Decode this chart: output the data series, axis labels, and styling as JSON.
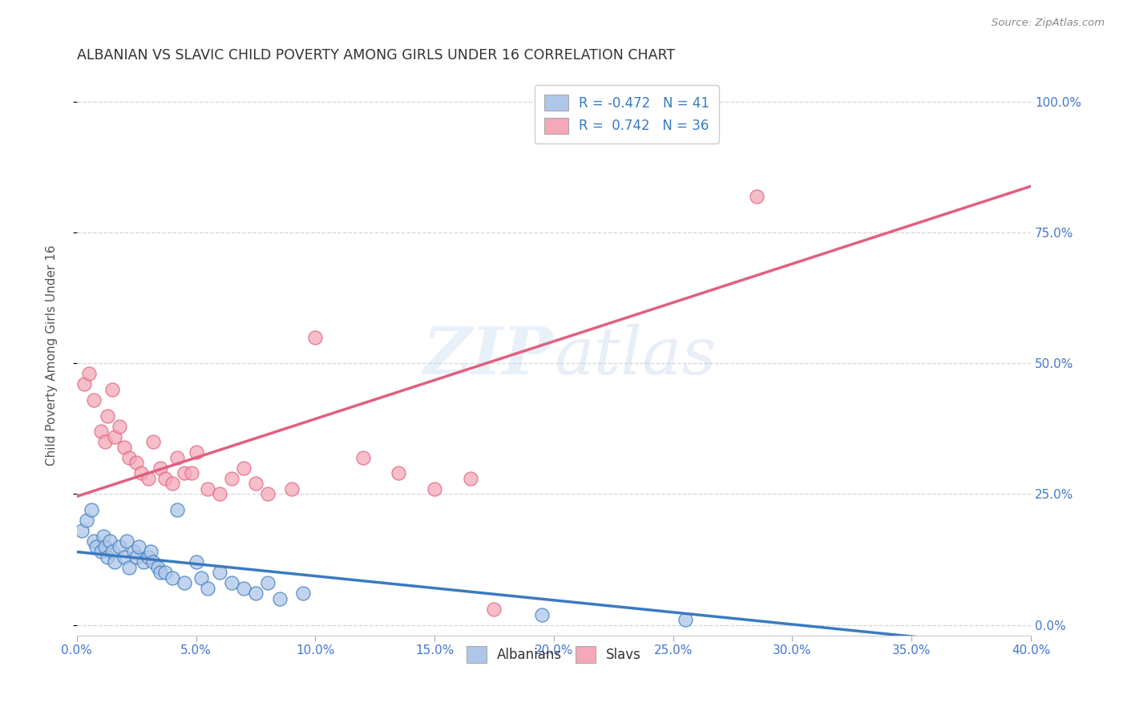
{
  "title": "ALBANIAN VS SLAVIC CHILD POVERTY AMONG GIRLS UNDER 16 CORRELATION CHART",
  "source": "Source: ZipAtlas.com",
  "xlabel_ticks": [
    "0.0%",
    "5.0%",
    "10.0%",
    "15.0%",
    "20.0%",
    "25.0%",
    "30.0%",
    "35.0%",
    "40.0%"
  ],
  "xlabel_vals": [
    0,
    5,
    10,
    15,
    20,
    25,
    30,
    35,
    40
  ],
  "ylabel": "Child Poverty Among Girls Under 16",
  "ylabel_ticks": [
    "0.0%",
    "25.0%",
    "50.0%",
    "75.0%",
    "100.0%"
  ],
  "ylabel_vals": [
    0,
    25,
    50,
    75,
    100
  ],
  "xlim": [
    0,
    40
  ],
  "ylim": [
    -2,
    105
  ],
  "albanians_R": -0.472,
  "albanians_N": 41,
  "slavs_R": 0.742,
  "slavs_N": 36,
  "albanians_color": "#aec6e8",
  "slavs_color": "#f4a8b8",
  "albanians_line_color": "#3a7bbf",
  "slavs_line_color": "#e06080",
  "legend_label1": "Albanians",
  "legend_label2": "Slavs",
  "albanians_x": [
    0.2,
    0.4,
    0.6,
    0.7,
    0.8,
    1.0,
    1.1,
    1.2,
    1.3,
    1.4,
    1.5,
    1.6,
    1.8,
    2.0,
    2.1,
    2.2,
    2.4,
    2.5,
    2.6,
    2.8,
    3.0,
    3.1,
    3.2,
    3.4,
    3.5,
    3.7,
    4.0,
    4.2,
    4.5,
    5.0,
    5.2,
    5.5,
    6.0,
    6.5,
    7.0,
    7.5,
    8.0,
    8.5,
    9.5,
    19.5,
    25.5
  ],
  "albanians_y": [
    18,
    20,
    22,
    16,
    15,
    14,
    17,
    15,
    13,
    16,
    14,
    12,
    15,
    13,
    16,
    11,
    14,
    13,
    15,
    12,
    13,
    14,
    12,
    11,
    10,
    10,
    9,
    22,
    8,
    12,
    9,
    7,
    10,
    8,
    7,
    6,
    8,
    5,
    6,
    2,
    1
  ],
  "slavs_x": [
    0.3,
    0.5,
    0.7,
    1.0,
    1.2,
    1.3,
    1.5,
    1.6,
    1.8,
    2.0,
    2.2,
    2.5,
    2.7,
    3.0,
    3.2,
    3.5,
    3.7,
    4.0,
    4.2,
    4.5,
    5.0,
    5.5,
    6.0,
    6.5,
    7.0,
    7.5,
    8.0,
    9.0,
    10.0,
    12.0,
    13.5,
    15.0,
    16.5,
    17.5,
    4.8,
    28.5
  ],
  "slavs_y": [
    46,
    48,
    43,
    37,
    35,
    40,
    45,
    36,
    38,
    34,
    32,
    31,
    29,
    28,
    35,
    30,
    28,
    27,
    32,
    29,
    33,
    26,
    25,
    28,
    30,
    27,
    25,
    26,
    55,
    32,
    29,
    26,
    28,
    3,
    29,
    82
  ],
  "watermark_zip": "ZIP",
  "watermark_atlas": "atlas",
  "background_color": "#ffffff",
  "grid_color": "#cccccc",
  "tick_color": "#4477cc",
  "title_color": "#333333",
  "source_color": "#888888",
  "ylabel_color": "#555555"
}
